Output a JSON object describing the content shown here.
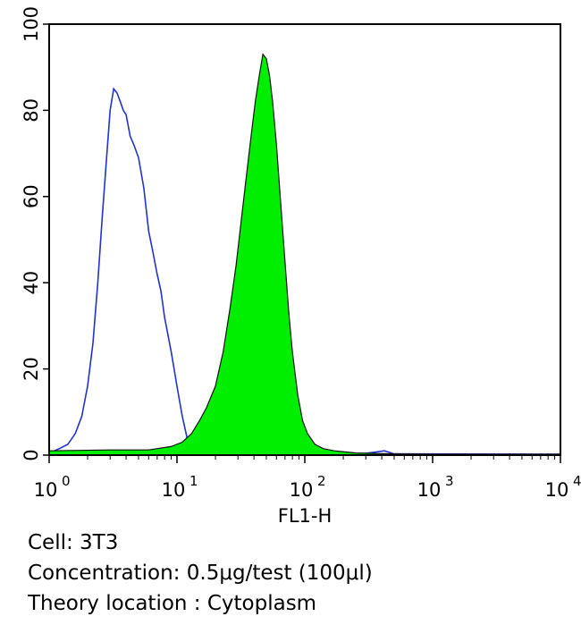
{
  "chart_data": {
    "type": "area",
    "xlabel": "FL1-H",
    "ylabel": "",
    "x_scale": "log",
    "xlim": [
      1,
      10000
    ],
    "ylim": [
      0,
      100
    ],
    "x_ticks": [
      {
        "base": "10",
        "exp": "0"
      },
      {
        "base": "10",
        "exp": "1"
      },
      {
        "base": "10",
        "exp": "2"
      },
      {
        "base": "10",
        "exp": "3"
      },
      {
        "base": "10",
        "exp": "4"
      }
    ],
    "y_ticks": [
      "0",
      "20",
      "40",
      "60",
      "80",
      "100"
    ],
    "series": [
      {
        "style": "outline",
        "color": "#2233cc",
        "points": [
          [
            1.0,
            0.5
          ],
          [
            1.2,
            1.5
          ],
          [
            1.4,
            2.5
          ],
          [
            1.6,
            5
          ],
          [
            1.8,
            9
          ],
          [
            2.0,
            16
          ],
          [
            2.2,
            26
          ],
          [
            2.4,
            40
          ],
          [
            2.6,
            55
          ],
          [
            2.8,
            68
          ],
          [
            3.0,
            80
          ],
          [
            3.2,
            85
          ],
          [
            3.4,
            84
          ],
          [
            3.6,
            82
          ],
          [
            3.8,
            80
          ],
          [
            4.0,
            79
          ],
          [
            4.3,
            74
          ],
          [
            4.6,
            72
          ],
          [
            5.0,
            69
          ],
          [
            5.5,
            62
          ],
          [
            6.0,
            52
          ],
          [
            6.5,
            47
          ],
          [
            7.0,
            42
          ],
          [
            7.5,
            38
          ],
          [
            8.0,
            32
          ],
          [
            9.0,
            24
          ],
          [
            10.0,
            16
          ],
          [
            11.0,
            9
          ],
          [
            12.0,
            4
          ],
          [
            13.0,
            1.5
          ],
          [
            15.0,
            0.5
          ],
          [
            30.0,
            0.3
          ],
          [
            100.0,
            0.3
          ],
          [
            300.0,
            0.4
          ],
          [
            420.0,
            1
          ],
          [
            500.0,
            0.3
          ],
          [
            10000.0,
            0.2
          ]
        ]
      },
      {
        "style": "filled",
        "color": "#00ee00",
        "points": [
          [
            1.0,
            1
          ],
          [
            3.0,
            1.2
          ],
          [
            6.0,
            1.2
          ],
          [
            9.0,
            2
          ],
          [
            11.0,
            3
          ],
          [
            13.0,
            5
          ],
          [
            15.0,
            8
          ],
          [
            17.0,
            11
          ],
          [
            20.0,
            16
          ],
          [
            23.0,
            24
          ],
          [
            26.0,
            34
          ],
          [
            29.0,
            44
          ],
          [
            32.0,
            55
          ],
          [
            35.0,
            65
          ],
          [
            38.0,
            74
          ],
          [
            41.0,
            82
          ],
          [
            44.0,
            88
          ],
          [
            47.0,
            93
          ],
          [
            50.0,
            92
          ],
          [
            53.0,
            88
          ],
          [
            56.0,
            82
          ],
          [
            60.0,
            72
          ],
          [
            65.0,
            58
          ],
          [
            70.0,
            45
          ],
          [
            75.0,
            33
          ],
          [
            80.0,
            24
          ],
          [
            88.0,
            14
          ],
          [
            96.0,
            8
          ],
          [
            105.0,
            5
          ],
          [
            120.0,
            2.5
          ],
          [
            140.0,
            1.5
          ],
          [
            170.0,
            1
          ],
          [
            250.0,
            0.5
          ],
          [
            500.0,
            0.3
          ],
          [
            1000.0,
            0.2
          ],
          [
            10000.0,
            0.2
          ]
        ]
      }
    ]
  },
  "caption": {
    "cell": "Cell: 3T3",
    "concentration": "Concentration: 0.5μg/test (100μl)",
    "theory_location": "Theory location : Cytoplasm"
  }
}
